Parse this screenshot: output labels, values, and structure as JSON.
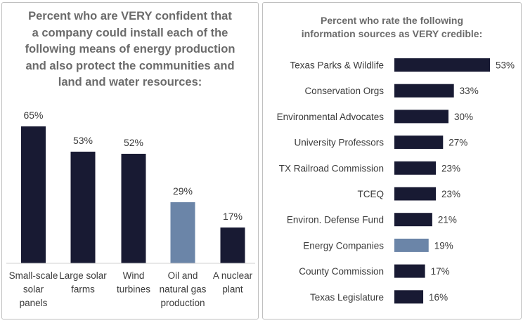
{
  "colors": {
    "bar": "#181a33",
    "highlight": "#6b85a8",
    "text": "#3a3a3a",
    "title": "#6b6b6b"
  },
  "chart_data": [
    {
      "type": "bar",
      "title": "Percent who are VERY confident that a company could install each of the following means of energy production and also protect the communities and land and water resources:",
      "categories": [
        "Small-scale solar panels",
        "Large solar farms",
        "Wind turbines",
        "Oil and natural gas production",
        "A nuclear plant"
      ],
      "category_lines": [
        [
          "Small-scale",
          "solar",
          "panels"
        ],
        [
          "Large solar",
          "farms"
        ],
        [
          "Wind",
          "turbines"
        ],
        [
          "Oil and",
          "natural gas",
          "production"
        ],
        [
          "A nuclear",
          "plant"
        ]
      ],
      "values": [
        65,
        53,
        52,
        29,
        17
      ],
      "value_labels": [
        "65%",
        "53%",
        "52%",
        "29%",
        "17%"
      ],
      "highlight_index": 3,
      "ylim": [
        0,
        65
      ],
      "grid": false,
      "xlabel": "",
      "ylabel": ""
    },
    {
      "type": "bar",
      "orientation": "horizontal",
      "title": "Percent who rate the following information sources as VERY credible:",
      "categories": [
        "Texas Parks & Wildlife",
        "Conservation Orgs",
        "Environmental Advocates",
        "University Professors",
        "TX Railroad Commission",
        "TCEQ",
        "Environ. Defense Fund",
        "Energy Companies",
        "County Commission",
        "Texas Legislature"
      ],
      "values": [
        53,
        33,
        30,
        27,
        23,
        23,
        21,
        19,
        17,
        16
      ],
      "value_labels": [
        "53%",
        "33%",
        "30%",
        "27%",
        "23%",
        "23%",
        "21%",
        "19%",
        "17%",
        "16%"
      ],
      "highlight_index": 7,
      "xlim": [
        0,
        53
      ],
      "grid": false,
      "xlabel": "",
      "ylabel": ""
    }
  ],
  "titles": {
    "left": "Percent who are VERY confident that\na company could install each of the\nfollowing means of energy production\nand also protect the communities and\nland and water resources:",
    "right": "Percent who rate the following\ninformation sources as VERY credible:"
  }
}
